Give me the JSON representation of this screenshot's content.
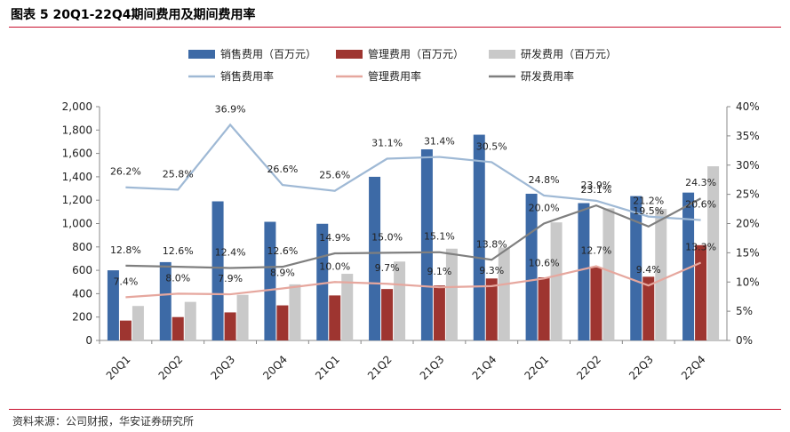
{
  "figure": {
    "title": "图表 5 20Q1-22Q4期间费用及期间费用率",
    "source": "资料来源：公司财报，华安证券研究所"
  },
  "colors": {
    "sales_bar": "#3d6aa6",
    "admin_bar": "#9e3530",
    "rd_bar": "#c9c9c9",
    "sales_line": "#9fb9d5",
    "admin_line": "#e6a79e",
    "rd_line": "#7f7f7f",
    "rule": "#c8102e"
  },
  "chart_data": {
    "type": "bar",
    "categories": [
      "20Q1",
      "20Q2",
      "20Q3",
      "20Q4",
      "21Q1",
      "21Q2",
      "21Q3",
      "21Q4",
      "22Q1",
      "22Q2",
      "22Q3",
      "22Q4"
    ],
    "series": [
      {
        "name": "销售费用（百万元）",
        "kind": "bar",
        "axis": "left",
        "values": [
          600,
          670,
          1190,
          1015,
          998,
          1400,
          1635,
          1760,
          1255,
          1175,
          1235,
          1265
        ]
      },
      {
        "name": "管理费用（百万元）",
        "kind": "bar",
        "axis": "left",
        "values": [
          170,
          200,
          240,
          300,
          385,
          440,
          470,
          530,
          540,
          625,
          545,
          815
        ]
      },
      {
        "name": "研发费用（百万元）",
        "kind": "bar",
        "axis": "left",
        "values": [
          295,
          330,
          390,
          480,
          570,
          675,
          785,
          795,
          1010,
          1130,
          1125,
          1490
        ]
      },
      {
        "name": "销售费用率",
        "kind": "line",
        "axis": "right",
        "values": [
          26.2,
          25.8,
          36.9,
          26.6,
          25.6,
          31.1,
          31.4,
          30.5,
          24.8,
          23.9,
          21.2,
          20.6
        ],
        "labels": [
          "26.2%",
          "25.8%",
          "36.9%",
          "26.6%",
          "25.6%",
          "31.1%",
          "31.4%",
          "30.5%",
          "24.8%",
          "23.9%",
          "21.2%",
          "20.6%"
        ]
      },
      {
        "name": "管理费用率",
        "kind": "line",
        "axis": "right",
        "values": [
          7.4,
          8.0,
          7.9,
          8.9,
          10.0,
          9.7,
          9.1,
          9.3,
          10.6,
          12.7,
          9.4,
          13.3
        ],
        "labels": [
          "7.4%",
          "8.0%",
          "7.9%",
          "8.9%",
          "10.0%",
          "9.7%",
          "9.1%",
          "9.3%",
          "10.6%",
          "12.7%",
          "9.4%",
          "13.3%"
        ]
      },
      {
        "name": "研发费用率",
        "kind": "line",
        "axis": "right",
        "values": [
          12.8,
          12.6,
          12.4,
          12.6,
          14.9,
          15.0,
          15.1,
          13.8,
          20.0,
          23.1,
          19.5,
          24.3
        ],
        "labels": [
          "12.8%",
          "12.6%",
          "12.4%",
          "12.6%",
          "14.9%",
          "15.0%",
          "15.1%",
          "13.8%",
          "20.0%",
          "23.1%",
          "19.5%",
          "24.3%"
        ]
      }
    ],
    "ylim_left": [
      0,
      2000
    ],
    "yticks_left": [
      0,
      200,
      400,
      600,
      800,
      1000,
      1200,
      1400,
      1600,
      1800,
      2000
    ],
    "yticks_left_labels": [
      "0",
      "200",
      "400",
      "600",
      "800",
      "1,000",
      "1,200",
      "1,400",
      "1,600",
      "1,800",
      "2,000"
    ],
    "ylim_right": [
      0,
      40
    ],
    "yticks_right": [
      0,
      5,
      10,
      15,
      20,
      25,
      30,
      35,
      40
    ],
    "yticks_right_labels": [
      "0%",
      "5%",
      "10%",
      "15%",
      "20%",
      "25%",
      "30%",
      "35%",
      "40%"
    ],
    "grid": false,
    "legend_position": "top"
  }
}
